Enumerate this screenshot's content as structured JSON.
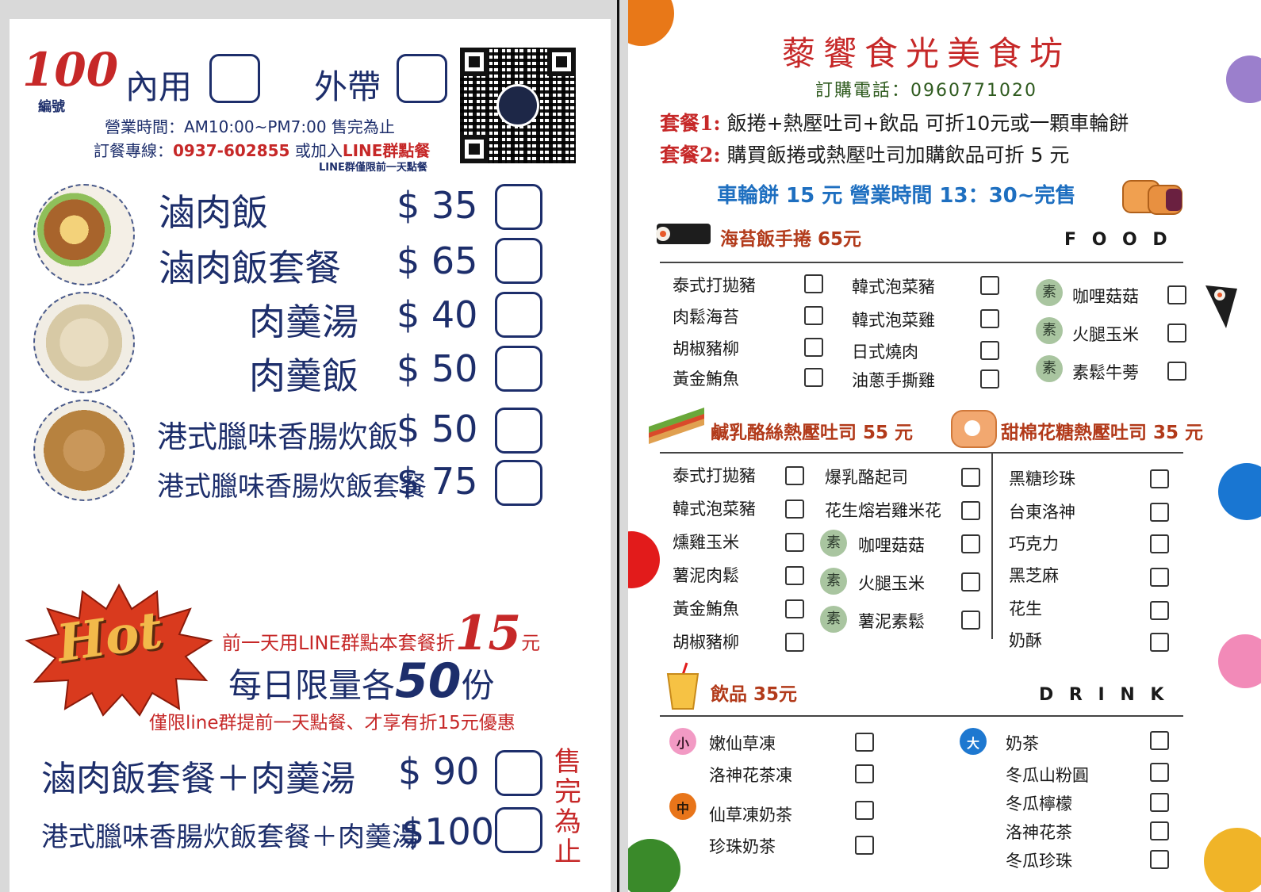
{
  "left": {
    "serial_no": "100",
    "serial_label": "編號",
    "dine_in": "內用",
    "takeout": "外帶",
    "hours": "營業時間：AM10:00~PM7:00 售完為止",
    "order_line_prefix": "訂餐專線：",
    "order_phone": "0937-602855",
    "order_line_mid": " 或加入",
    "order_line_group": "LINE群點餐",
    "line_note": "LINE群僅限前一天點餐",
    "menu": [
      {
        "name": "滷肉飯",
        "price": "$ 35"
      },
      {
        "name": "滷肉飯套餐",
        "price": "$ 65"
      },
      {
        "name": "肉羹湯",
        "price": "$ 40"
      },
      {
        "name": "肉羹飯",
        "price": "$ 50"
      },
      {
        "name": "港式臘味香腸炊飯",
        "price": "$ 50"
      },
      {
        "name": "港式臘味香腸炊飯套餐",
        "price": "$ 75"
      }
    ],
    "hot_badge": "Hot",
    "promo_text": "前一天用LINE群點本套餐折",
    "promo_num": "15",
    "promo_unit": "元",
    "limit_pre": "每日限量各",
    "limit_num": "50",
    "limit_post": "份",
    "limit_note": "僅限line群提前一天點餐、才享有折15元優惠",
    "combos": [
      {
        "name": "滷肉飯套餐＋肉羹湯",
        "price": "$ 90"
      },
      {
        "name": "港式臘味香腸炊飯套餐＋肉羹湯",
        "price": "$100"
      }
    ],
    "soldout": [
      "售",
      "完",
      "為",
      "止"
    ]
  },
  "right": {
    "shop_name": "藜饗食光美食坊",
    "order_phone": "訂購電話：0960771020",
    "combo1_label": "套餐1:",
    "combo1_text": "飯捲+熱壓吐司+飲品 可折10元或一顆車輪餅",
    "combo2_label": "套餐2:",
    "combo2_text": "購買飯捲或熱壓吐司加購飲品可折 5 元",
    "wheel_cake": "車輪餅 15 元  營業時間 13：30~完售",
    "seaweed_title": "海苔飯手捲 65元",
    "food_label": "F O O D",
    "seaweed_col1": [
      "泰式打拋豬",
      "肉鬆海苔",
      "胡椒豬柳",
      "黃金鮪魚"
    ],
    "seaweed_col2": [
      "韓式泡菜豬",
      "韓式泡菜雞",
      "日式燒肉",
      "油蔥手撕雞"
    ],
    "veg_mark": "素",
    "seaweed_col3": [
      "咖哩菇菇",
      "火腿玉米",
      "素鬆牛蒡"
    ],
    "toast_title_1": "鹹乳酪絲熱壓吐司 55 元",
    "toast_title_2": "甜棉花糖熱壓吐司 35 元",
    "toast_col1": [
      "泰式打拋豬",
      "韓式泡菜豬",
      "燻雞玉米",
      "薯泥肉鬆",
      "黃金鮪魚",
      "胡椒豬柳"
    ],
    "toast_col2_plain": [
      "爆乳酪起司",
      "花生熔岩雞米花"
    ],
    "toast_col2_veg": [
      "咖哩菇菇",
      "火腿玉米",
      "薯泥素鬆"
    ],
    "toast_col3": [
      "黑糖珍珠",
      "台東洛神",
      "巧克力",
      "黑芝麻",
      "花生",
      "奶酥"
    ],
    "drink_title": "飲品 35元",
    "drink_label": "D R I N K",
    "size_small": "小",
    "size_medium": "中",
    "size_large": "大",
    "drinks_small": [
      "嫩仙草凍",
      "洛神花茶凍"
    ],
    "drinks_medium": [
      "仙草凍奶茶",
      "珍珠奶茶"
    ],
    "drinks_large": [
      "奶茶",
      "冬瓜山粉圓",
      "冬瓜檸檬",
      "洛神花茶",
      "冬瓜珍珠"
    ]
  }
}
